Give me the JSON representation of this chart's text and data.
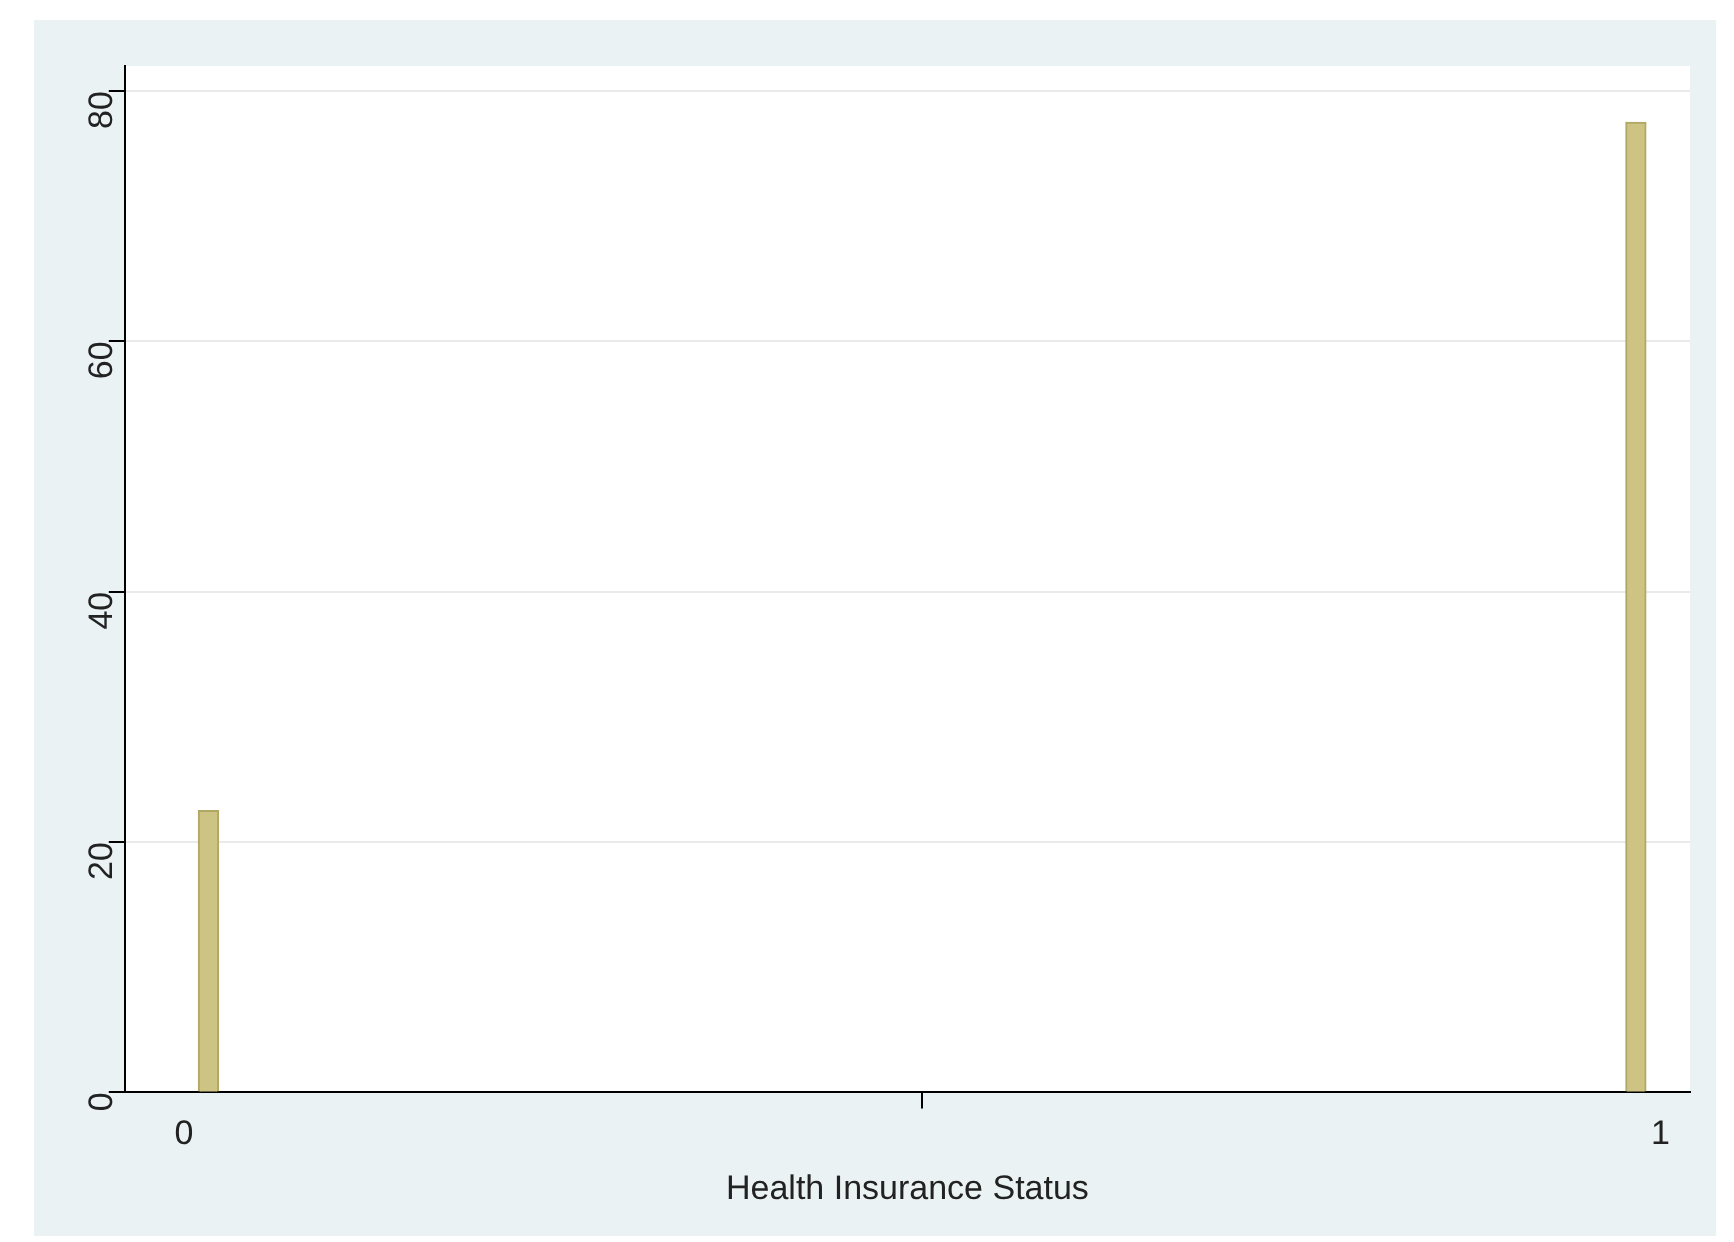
{
  "chart_data": {
    "type": "histogram",
    "xlabel": "Health Insurance Status",
    "bins": [
      0,
      0.0333,
      0.9667,
      1
    ],
    "values": [
      22.5,
      0,
      77.5
    ],
    "color": "#cdc383",
    "xlim": [
      -0.04,
      1.02
    ],
    "xticks": [
      0,
      1
    ],
    "ylim": [
      0,
      82
    ],
    "yticks": [
      0,
      20,
      40,
      60,
      80
    ],
    "grid": "y",
    "legend": false
  }
}
